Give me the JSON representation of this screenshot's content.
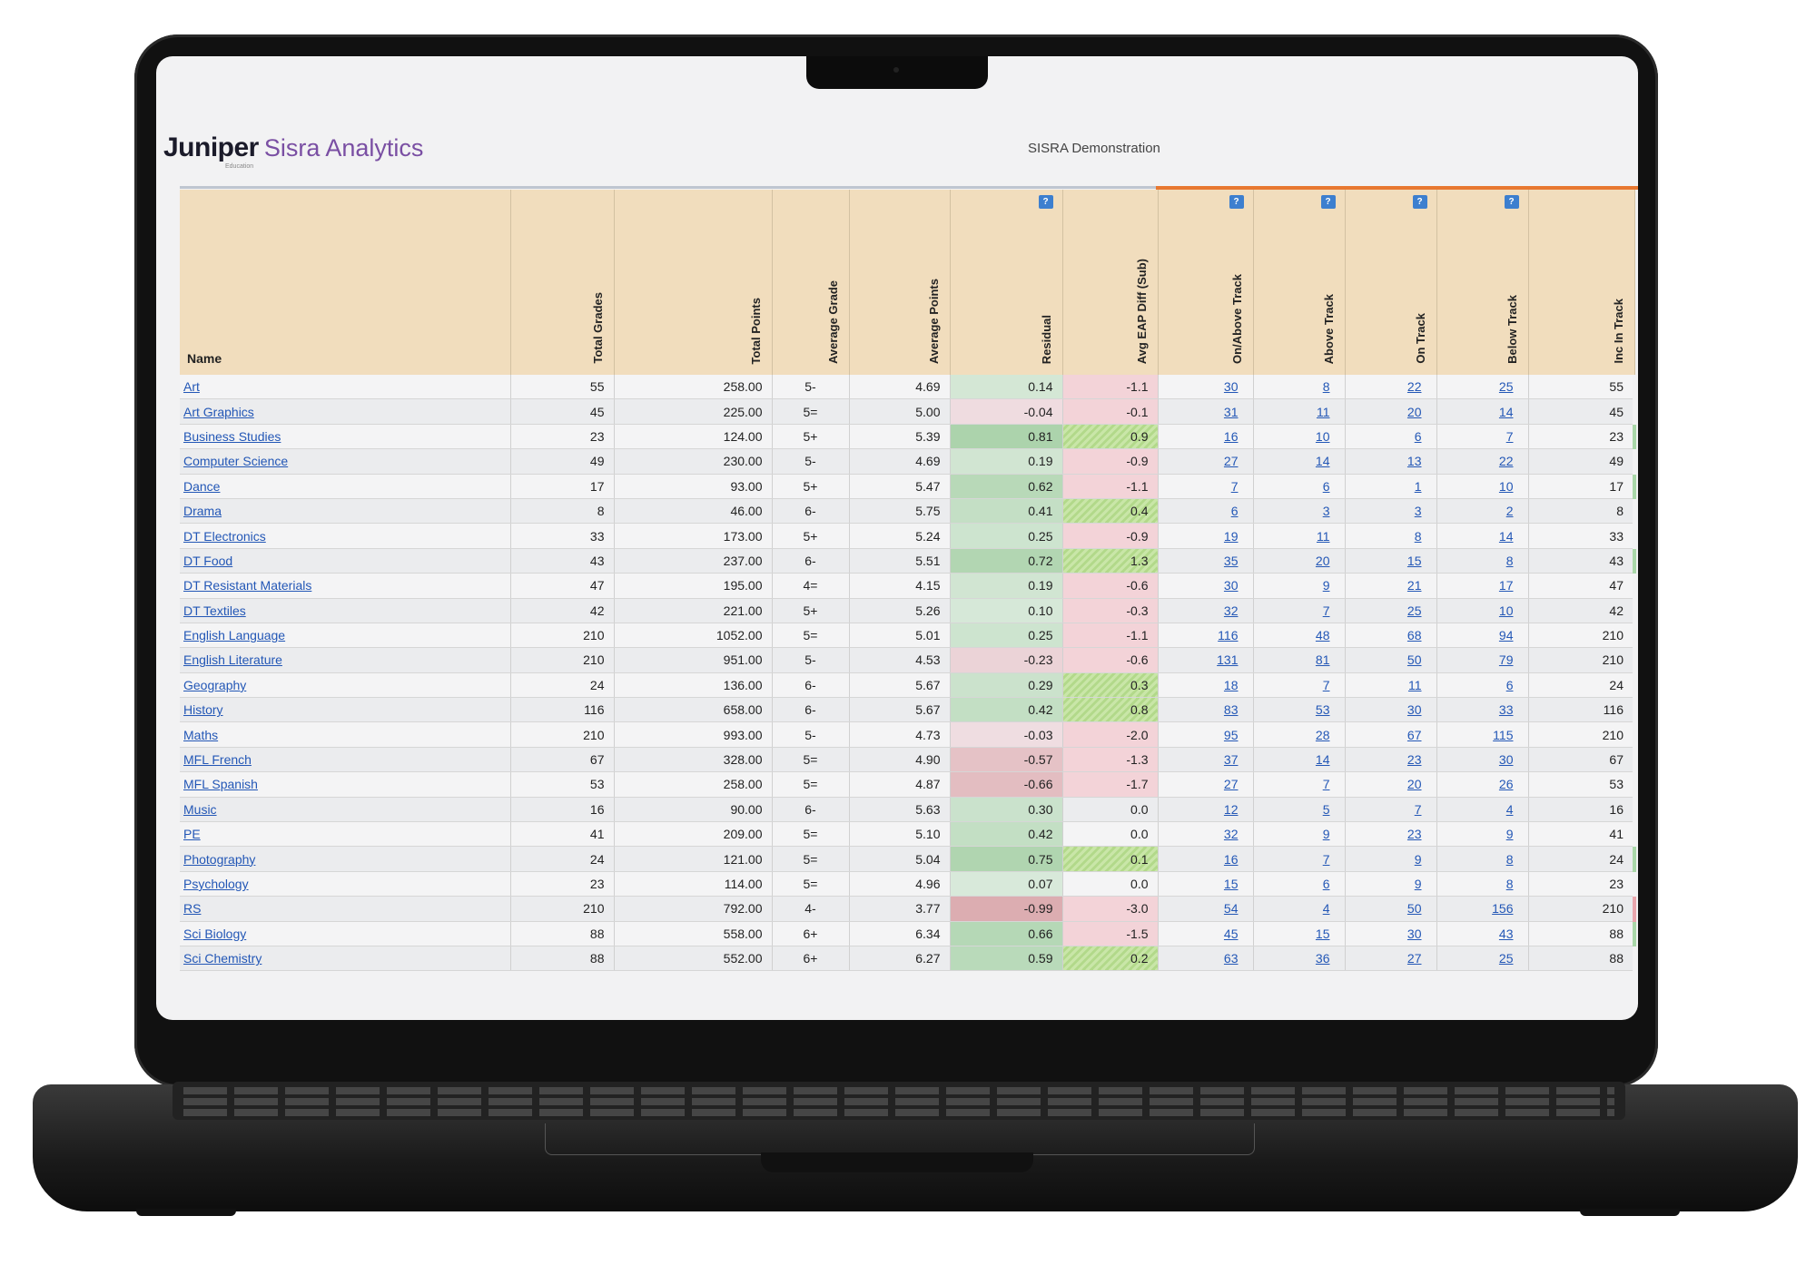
{
  "header": {
    "brand_main": "Juniper",
    "brand_tag": "Education",
    "brand_sub": "Sisra Analytics",
    "title": "SISRA Demonstration"
  },
  "columns": [
    "Name",
    "Total Grades",
    "Total Points",
    "Average Grade",
    "Average Points",
    "Residual",
    "Avg EAP Diff (Sub)",
    "On/Above Track",
    "Above Track",
    "On Track",
    "Below Track",
    "Inc In Track"
  ],
  "help_label": "?",
  "colors": {
    "header_bg": "#f1ddbd",
    "link": "#2357b6",
    "accent_orange": "#e87830",
    "help_blue": "#3d7fcf"
  },
  "rows": [
    {
      "name": "Art",
      "total_grades": "55",
      "total_points": "258.00",
      "avg_grade": "5-",
      "avg_points": "4.69",
      "residual": "0.14",
      "eap": "-1.1",
      "on_above": "30",
      "above": "8",
      "on": "22",
      "below": "25",
      "inc": "55"
    },
    {
      "name": "Art Graphics",
      "total_grades": "45",
      "total_points": "225.00",
      "avg_grade": "5=",
      "avg_points": "5.00",
      "residual": "-0.04",
      "eap": "-0.1",
      "on_above": "31",
      "above": "11",
      "on": "20",
      "below": "14",
      "inc": "45"
    },
    {
      "name": "Business Studies",
      "total_grades": "23",
      "total_points": "124.00",
      "avg_grade": "5+",
      "avg_points": "5.39",
      "residual": "0.81",
      "eap": "0.9",
      "on_above": "16",
      "above": "10",
      "on": "6",
      "below": "7",
      "inc": "23"
    },
    {
      "name": "Computer Science",
      "total_grades": "49",
      "total_points": "230.00",
      "avg_grade": "5-",
      "avg_points": "4.69",
      "residual": "0.19",
      "eap": "-0.9",
      "on_above": "27",
      "above": "14",
      "on": "13",
      "below": "22",
      "inc": "49"
    },
    {
      "name": "Dance",
      "total_grades": "17",
      "total_points": "93.00",
      "avg_grade": "5+",
      "avg_points": "5.47",
      "residual": "0.62",
      "eap": "-1.1",
      "on_above": "7",
      "above": "6",
      "on": "1",
      "below": "10",
      "inc": "17"
    },
    {
      "name": "Drama",
      "total_grades": "8",
      "total_points": "46.00",
      "avg_grade": "6-",
      "avg_points": "5.75",
      "residual": "0.41",
      "eap": "0.4",
      "on_above": "6",
      "above": "3",
      "on": "3",
      "below": "2",
      "inc": "8"
    },
    {
      "name": "DT Electronics",
      "total_grades": "33",
      "total_points": "173.00",
      "avg_grade": "5+",
      "avg_points": "5.24",
      "residual": "0.25",
      "eap": "-0.9",
      "on_above": "19",
      "above": "11",
      "on": "8",
      "below": "14",
      "inc": "33"
    },
    {
      "name": "DT Food",
      "total_grades": "43",
      "total_points": "237.00",
      "avg_grade": "6-",
      "avg_points": "5.51",
      "residual": "0.72",
      "eap": "1.3",
      "on_above": "35",
      "above": "20",
      "on": "15",
      "below": "8",
      "inc": "43"
    },
    {
      "name": "DT Resistant Materials",
      "total_grades": "47",
      "total_points": "195.00",
      "avg_grade": "4=",
      "avg_points": "4.15",
      "residual": "0.19",
      "eap": "-0.6",
      "on_above": "30",
      "above": "9",
      "on": "21",
      "below": "17",
      "inc": "47"
    },
    {
      "name": "DT Textiles",
      "total_grades": "42",
      "total_points": "221.00",
      "avg_grade": "5+",
      "avg_points": "5.26",
      "residual": "0.10",
      "eap": "-0.3",
      "on_above": "32",
      "above": "7",
      "on": "25",
      "below": "10",
      "inc": "42"
    },
    {
      "name": "English Language",
      "total_grades": "210",
      "total_points": "1052.00",
      "avg_grade": "5=",
      "avg_points": "5.01",
      "residual": "0.25",
      "eap": "-1.1",
      "on_above": "116",
      "above": "48",
      "on": "68",
      "below": "94",
      "inc": "210"
    },
    {
      "name": "English Literature",
      "total_grades": "210",
      "total_points": "951.00",
      "avg_grade": "5-",
      "avg_points": "4.53",
      "residual": "-0.23",
      "eap": "-0.6",
      "on_above": "131",
      "above": "81",
      "on": "50",
      "below": "79",
      "inc": "210"
    },
    {
      "name": "Geography",
      "total_grades": "24",
      "total_points": "136.00",
      "avg_grade": "6-",
      "avg_points": "5.67",
      "residual": "0.29",
      "eap": "0.3",
      "on_above": "18",
      "above": "7",
      "on": "11",
      "below": "6",
      "inc": "24"
    },
    {
      "name": "History",
      "total_grades": "116",
      "total_points": "658.00",
      "avg_grade": "6-",
      "avg_points": "5.67",
      "residual": "0.42",
      "eap": "0.8",
      "on_above": "83",
      "above": "53",
      "on": "30",
      "below": "33",
      "inc": "116"
    },
    {
      "name": "Maths",
      "total_grades": "210",
      "total_points": "993.00",
      "avg_grade": "5-",
      "avg_points": "4.73",
      "residual": "-0.03",
      "eap": "-2.0",
      "on_above": "95",
      "above": "28",
      "on": "67",
      "below": "115",
      "inc": "210"
    },
    {
      "name": "MFL French",
      "total_grades": "67",
      "total_points": "328.00",
      "avg_grade": "5=",
      "avg_points": "4.90",
      "residual": "-0.57",
      "eap": "-1.3",
      "on_above": "37",
      "above": "14",
      "on": "23",
      "below": "30",
      "inc": "67"
    },
    {
      "name": "MFL Spanish",
      "total_grades": "53",
      "total_points": "258.00",
      "avg_grade": "5=",
      "avg_points": "4.87",
      "residual": "-0.66",
      "eap": "-1.7",
      "on_above": "27",
      "above": "7",
      "on": "20",
      "below": "26",
      "inc": "53"
    },
    {
      "name": "Music",
      "total_grades": "16",
      "total_points": "90.00",
      "avg_grade": "6-",
      "avg_points": "5.63",
      "residual": "0.30",
      "eap": "0.0",
      "on_above": "12",
      "above": "5",
      "on": "7",
      "below": "4",
      "inc": "16"
    },
    {
      "name": "PE",
      "total_grades": "41",
      "total_points": "209.00",
      "avg_grade": "5=",
      "avg_points": "5.10",
      "residual": "0.42",
      "eap": "0.0",
      "on_above": "32",
      "above": "9",
      "on": "23",
      "below": "9",
      "inc": "41"
    },
    {
      "name": "Photography",
      "total_grades": "24",
      "total_points": "121.00",
      "avg_grade": "5=",
      "avg_points": "5.04",
      "residual": "0.75",
      "eap": "0.1",
      "on_above": "16",
      "above": "7",
      "on": "9",
      "below": "8",
      "inc": "24"
    },
    {
      "name": "Psychology",
      "total_grades": "23",
      "total_points": "114.00",
      "avg_grade": "5=",
      "avg_points": "4.96",
      "residual": "0.07",
      "eap": "0.0",
      "on_above": "15",
      "above": "6",
      "on": "9",
      "below": "8",
      "inc": "23"
    },
    {
      "name": "RS",
      "total_grades": "210",
      "total_points": "792.00",
      "avg_grade": "4-",
      "avg_points": "3.77",
      "residual": "-0.99",
      "eap": "-3.0",
      "on_above": "54",
      "above": "4",
      "on": "50",
      "below": "156",
      "inc": "210"
    },
    {
      "name": "Sci Biology",
      "total_grades": "88",
      "total_points": "558.00",
      "avg_grade": "6+",
      "avg_points": "6.34",
      "residual": "0.66",
      "eap": "-1.5",
      "on_above": "45",
      "above": "15",
      "on": "30",
      "below": "43",
      "inc": "88"
    },
    {
      "name": "Sci Chemistry",
      "total_grades": "88",
      "total_points": "552.00",
      "avg_grade": "6+",
      "avg_points": "6.27",
      "residual": "0.59",
      "eap": "0.2",
      "on_above": "63",
      "above": "36",
      "on": "27",
      "below": "25",
      "inc": "88"
    }
  ]
}
